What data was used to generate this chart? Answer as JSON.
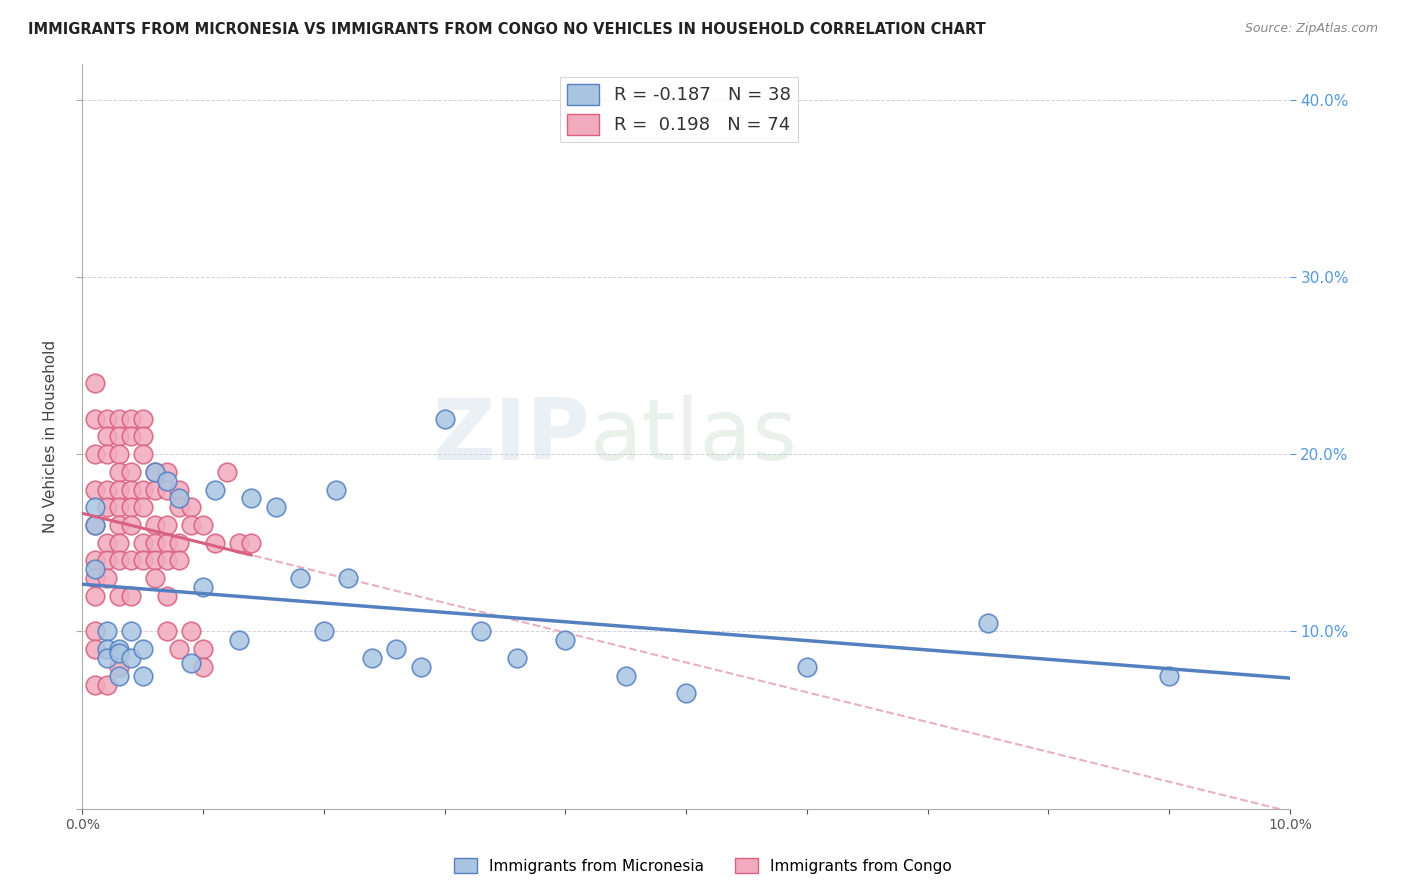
{
  "title": "IMMIGRANTS FROM MICRONESIA VS IMMIGRANTS FROM CONGO NO VEHICLES IN HOUSEHOLD CORRELATION CHART",
  "source": "Source: ZipAtlas.com",
  "ylabel": "No Vehicles in Household",
  "xlim": [
    0.0,
    0.1
  ],
  "ylim": [
    0.0,
    0.42
  ],
  "micronesia_R": -0.187,
  "micronesia_N": 38,
  "congo_R": 0.198,
  "congo_N": 74,
  "color_micronesia": "#aac5e2",
  "color_congo": "#f2aabe",
  "color_micronesia_line": "#5580c0",
  "color_congo_line": "#d86080",
  "color_micronesia_dash": "#b0c8e8",
  "color_congo_dash": "#e8b0c0",
  "watermark": "ZIPatlas",
  "micronesia_x": [
    0.001,
    0.001,
    0.001,
    0.002,
    0.002,
    0.002,
    0.003,
    0.003,
    0.003,
    0.004,
    0.004,
    0.005,
    0.005,
    0.006,
    0.007,
    0.008,
    0.009,
    0.01,
    0.011,
    0.013,
    0.014,
    0.016,
    0.018,
    0.02,
    0.021,
    0.022,
    0.024,
    0.026,
    0.028,
    0.03,
    0.033,
    0.036,
    0.04,
    0.045,
    0.05,
    0.06,
    0.075,
    0.09
  ],
  "micronesia_y": [
    0.17,
    0.16,
    0.135,
    0.1,
    0.09,
    0.085,
    0.09,
    0.088,
    0.075,
    0.1,
    0.085,
    0.09,
    0.075,
    0.19,
    0.185,
    0.175,
    0.082,
    0.125,
    0.18,
    0.095,
    0.175,
    0.17,
    0.13,
    0.1,
    0.18,
    0.13,
    0.085,
    0.09,
    0.08,
    0.22,
    0.1,
    0.085,
    0.095,
    0.075,
    0.065,
    0.08,
    0.105,
    0.075
  ],
  "congo_x": [
    0.001,
    0.001,
    0.001,
    0.001,
    0.001,
    0.001,
    0.001,
    0.001,
    0.001,
    0.001,
    0.001,
    0.002,
    0.002,
    0.002,
    0.002,
    0.002,
    0.002,
    0.002,
    0.002,
    0.002,
    0.003,
    0.003,
    0.003,
    0.003,
    0.003,
    0.003,
    0.003,
    0.003,
    0.003,
    0.003,
    0.003,
    0.004,
    0.004,
    0.004,
    0.004,
    0.004,
    0.004,
    0.004,
    0.004,
    0.005,
    0.005,
    0.005,
    0.005,
    0.005,
    0.005,
    0.005,
    0.006,
    0.006,
    0.006,
    0.006,
    0.006,
    0.006,
    0.007,
    0.007,
    0.007,
    0.007,
    0.007,
    0.007,
    0.007,
    0.008,
    0.008,
    0.008,
    0.008,
    0.008,
    0.009,
    0.009,
    0.009,
    0.01,
    0.01,
    0.01,
    0.011,
    0.012,
    0.013,
    0.014
  ],
  "congo_y": [
    0.24,
    0.22,
    0.2,
    0.18,
    0.16,
    0.14,
    0.13,
    0.12,
    0.1,
    0.09,
    0.07,
    0.22,
    0.21,
    0.2,
    0.18,
    0.17,
    0.15,
    0.14,
    0.13,
    0.07,
    0.22,
    0.21,
    0.2,
    0.19,
    0.18,
    0.17,
    0.16,
    0.15,
    0.14,
    0.12,
    0.08,
    0.22,
    0.21,
    0.19,
    0.18,
    0.17,
    0.16,
    0.14,
    0.12,
    0.22,
    0.21,
    0.2,
    0.18,
    0.17,
    0.15,
    0.14,
    0.19,
    0.18,
    0.16,
    0.15,
    0.14,
    0.13,
    0.19,
    0.18,
    0.16,
    0.15,
    0.14,
    0.12,
    0.1,
    0.18,
    0.17,
    0.15,
    0.14,
    0.09,
    0.17,
    0.16,
    0.1,
    0.16,
    0.09,
    0.08,
    0.15,
    0.19,
    0.15,
    0.15
  ]
}
